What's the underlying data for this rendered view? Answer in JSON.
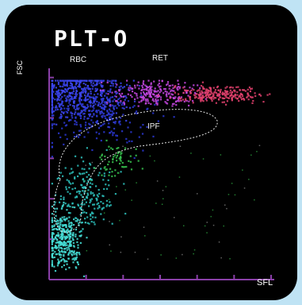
{
  "chart_data": {
    "type": "scatter",
    "title": "PLT-O",
    "xlabel": "SFL",
    "ylabel": "FSC",
    "xlim": [
      0,
      1
    ],
    "ylim": [
      0,
      1
    ],
    "grid": false,
    "ticks": {
      "x": 6,
      "y": 5
    },
    "regions": [
      {
        "label": "RBC",
        "color": "#3a44e6"
      },
      {
        "label": "RET",
        "color": "#d33aa0"
      },
      {
        "label": "IPF",
        "color": "#36b84a"
      }
    ],
    "clusters": [
      {
        "name": "RBC",
        "color": "#3d47f2",
        "center": [
          0.13,
          0.89
        ],
        "spread": [
          0.1,
          0.06
        ],
        "count": 520
      },
      {
        "name": "RBC-tail",
        "color": "#2c38d6",
        "center": [
          0.22,
          0.8
        ],
        "spread": [
          0.13,
          0.08
        ],
        "count": 260
      },
      {
        "name": "RET",
        "color": "#c447e0",
        "center": [
          0.48,
          0.9
        ],
        "spread": [
          0.1,
          0.03
        ],
        "count": 240
      },
      {
        "name": "RET-high",
        "color": "#e2416d",
        "center": [
          0.76,
          0.895
        ],
        "spread": [
          0.1,
          0.02
        ],
        "count": 240
      },
      {
        "name": "PLT",
        "color": "#46e0d8",
        "center": [
          0.06,
          0.2
        ],
        "spread": [
          0.04,
          0.07
        ],
        "count": 360
      },
      {
        "name": "PLT-upper",
        "color": "#2ec4c0",
        "center": [
          0.16,
          0.42
        ],
        "spread": [
          0.06,
          0.08
        ],
        "count": 200
      },
      {
        "name": "IPF",
        "color": "#37c34f",
        "center": [
          0.3,
          0.58
        ],
        "spread": [
          0.05,
          0.05
        ],
        "count": 60
      }
    ]
  }
}
